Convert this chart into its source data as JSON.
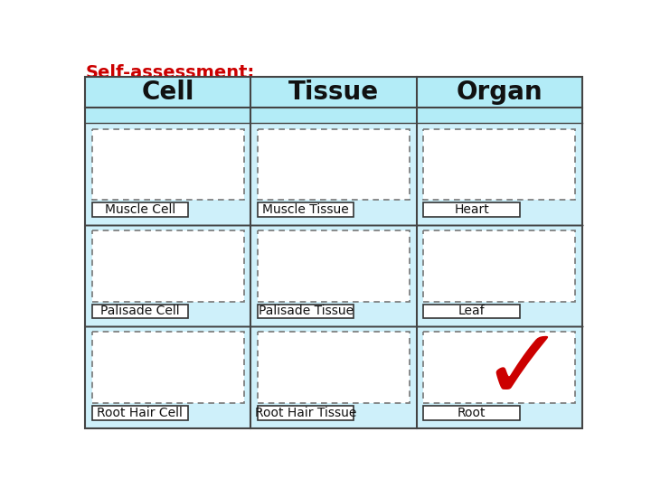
{
  "title": "Self-assessment:",
  "title_color": "#cc0000",
  "title_fontsize": 14,
  "columns": [
    "Cell",
    "Tissue",
    "Organ"
  ],
  "col_header_bg": "#b3ecf7",
  "col_header_fontsize": 20,
  "col_header_fontweight": "bold",
  "table_border_color": "#444444",
  "rows": [
    [
      "Muscle Cell",
      "Muscle Tissue",
      "Heart"
    ],
    [
      "Palisade Cell",
      "Palisade Tissue",
      "Leaf"
    ],
    [
      "Root Hair Cell",
      "Root Hair Tissue",
      "Root"
    ]
  ],
  "label_fontsize": 10,
  "dashed_border_color": "#777777",
  "label_box_color": "#ffffff",
  "label_box_border": "#333333",
  "bg_color": "#ffffff",
  "checkmark_color": "#cc0000",
  "cell_bg": "#cef0fa",
  "img_box_bg": "#ffffff"
}
